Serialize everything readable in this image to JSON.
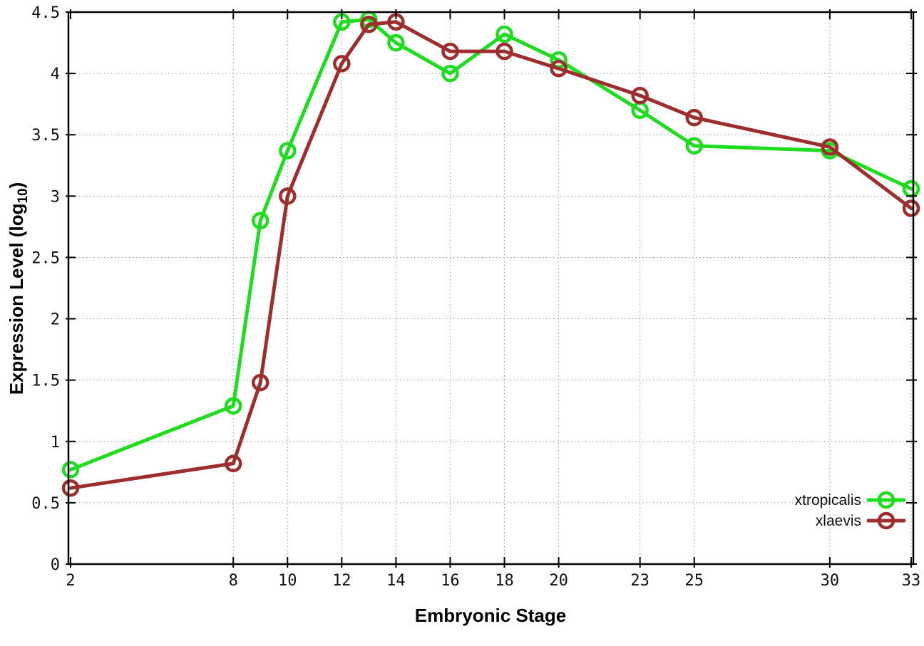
{
  "chart_data": {
    "type": "line",
    "title": "",
    "xlabel": "Embryonic Stage",
    "ylabel": "Expression Level (log10)",
    "ylabel_parts": {
      "main": "Expression Level (log",
      "sub": "10",
      "end": ")"
    },
    "x": [
      2,
      8,
      9,
      10,
      12,
      13,
      14,
      16,
      18,
      20,
      23,
      25,
      30,
      33
    ],
    "series": [
      {
        "name": "xtropicalis",
        "color": "#1edc1e",
        "marker": "open-circle",
        "values": [
          0.77,
          1.29,
          2.8,
          3.37,
          4.42,
          4.44,
          4.25,
          4.0,
          4.32,
          4.11,
          3.7,
          3.41,
          3.37,
          3.06
        ]
      },
      {
        "name": "xlaevis",
        "color": "#9e2d2d",
        "marker": "open-circle",
        "values": [
          0.62,
          0.82,
          1.48,
          3.0,
          4.08,
          4.4,
          4.42,
          4.18,
          4.18,
          4.04,
          3.82,
          3.64,
          3.4,
          2.9
        ]
      }
    ],
    "xticks": [
      2,
      8,
      10,
      12,
      14,
      16,
      18,
      20,
      23,
      25,
      30,
      33
    ],
    "xtick_labels": [
      "2",
      "8",
      "10",
      "12",
      "14",
      "16",
      "18",
      "20",
      "23",
      "25",
      "30",
      "33"
    ],
    "yticks": [
      0,
      0.5,
      1,
      1.5,
      2,
      2.5,
      3,
      3.5,
      4,
      4.5
    ],
    "ytick_labels": [
      "0",
      "0.5",
      "1",
      "1.5",
      "2",
      "2.5",
      "3",
      "3.5",
      "4",
      "4.5"
    ],
    "xlim": [
      2,
      33
    ],
    "ylim": [
      0,
      4.5
    ],
    "grid": true,
    "legend_position": "bottom-right"
  },
  "colors": {
    "background": "#ffffff",
    "axis": "#000000",
    "grid": "#9a9a9a",
    "text": "#111111"
  }
}
